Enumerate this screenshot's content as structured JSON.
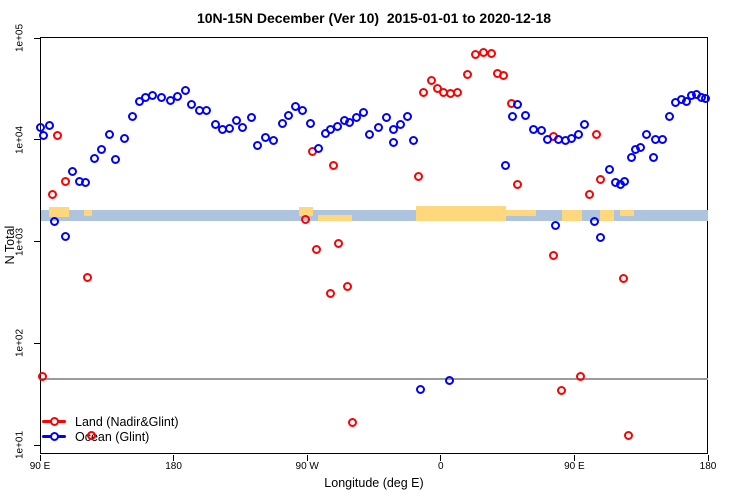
{
  "legend": {
    "items": [
      {
        "label": "Land (Nadir&Glint)",
        "color": "#ff0000"
      },
      {
        "label": "Ocean (Glint)",
        "color": "#0000ff"
      }
    ]
  },
  "chart_data": {
    "type": "scatter",
    "title": "10N-15N December (Ver 10)  2015-01-01 to 2020-12-18",
    "xlabel": "Longitude (deg E)",
    "ylabel": "N Total",
    "x_axis": {
      "note": "longitude axis runs eastward and wraps: 90E -> 180 -> 90W -> 0 -> 90E -> 180; internal coordinate 90..540 deg",
      "range": [
        90,
        540
      ],
      "ticks": [
        {
          "pos": 90,
          "label": "90 E"
        },
        {
          "pos": 180,
          "label": "180"
        },
        {
          "pos": 270,
          "label": "90 W"
        },
        {
          "pos": 360,
          "label": "0"
        },
        {
          "pos": 450,
          "label": "90 E"
        },
        {
          "pos": 540,
          "label": "180"
        }
      ]
    },
    "y_axis": {
      "scale": "log",
      "range": [
        10,
        100000
      ],
      "ticks": [
        {
          "value": 10,
          "label": "1e+01"
        },
        {
          "value": 100,
          "label": "1e+02"
        },
        {
          "value": 1000,
          "label": "1e+03"
        },
        {
          "value": 10000,
          "label": "1e+04"
        },
        {
          "value": 100000,
          "label": "1e+05"
        }
      ]
    },
    "reference_line": {
      "value": 45,
      "color": "#9b9b9b"
    },
    "map_strip": {
      "ocean_color": "#aec3de",
      "land_color": "#ffd87e",
      "n_top": 2000,
      "n_bottom": 1580,
      "land_segments": [
        {
          "lon_start": 96,
          "lon_end": 109.5,
          "style": "tall-top"
        },
        {
          "lon_start": 119.5,
          "lon_end": 125,
          "style": "top-half"
        },
        {
          "lon_start": 264.5,
          "lon_end": 274,
          "style": "top-bulge"
        },
        {
          "lon_start": 277,
          "lon_end": 300,
          "style": "bottom-half"
        },
        {
          "lon_start": 343,
          "lon_end": 404,
          "style": "full-bulge"
        },
        {
          "lon_start": 404,
          "lon_end": 424,
          "style": "top-half"
        },
        {
          "lon_start": 441.5,
          "lon_end": 455,
          "style": "full"
        },
        {
          "lon_start": 467,
          "lon_end": 476.5,
          "style": "full"
        },
        {
          "lon_start": 480.5,
          "lon_end": 490,
          "style": "top-half"
        }
      ]
    },
    "series": [
      {
        "name": "Land (Nadir&Glint)",
        "color": "#ff0000",
        "points": [
          [
            101.9,
            11100
          ],
          [
            107.0,
            3950
          ],
          [
            98.3,
            2940
          ],
          [
            122.1,
            443
          ],
          [
            91.8,
            47.7
          ],
          [
            125.0,
            12.3
          ],
          [
            269.0,
            1640
          ],
          [
            273.4,
            7670
          ],
          [
            276.4,
            841
          ],
          [
            285.8,
            306
          ],
          [
            288.0,
            5550
          ],
          [
            291.4,
            964
          ],
          [
            297.4,
            366
          ],
          [
            300.5,
            16.6
          ],
          [
            344.9,
            4330
          ],
          [
            348.6,
            29600
          ],
          [
            353.8,
            38900
          ],
          [
            357.6,
            31900
          ],
          [
            362.1,
            29600
          ],
          [
            366.6,
            28500
          ],
          [
            371.1,
            29200
          ],
          [
            377.8,
            43700
          ],
          [
            383.7,
            68700
          ],
          [
            389.1,
            71900
          ],
          [
            394.3,
            70600
          ],
          [
            398.0,
            45600
          ],
          [
            402.5,
            42900
          ],
          [
            407.7,
            23000
          ],
          [
            411.9,
            3610
          ],
          [
            436.0,
            10800
          ],
          [
            436.0,
            723
          ],
          [
            441.6,
            34.2
          ],
          [
            454.2,
            47.7
          ],
          [
            460.0,
            2940
          ],
          [
            465.2,
            11200
          ],
          [
            467.8,
            4130
          ],
          [
            483.3,
            436
          ],
          [
            486.2,
            12.3
          ]
        ]
      },
      {
        "name": "Ocean (Glint)",
        "color": "#0000ff",
        "points": [
          [
            90.0,
            13300
          ],
          [
            92.3,
            11100
          ],
          [
            96.1,
            13900
          ],
          [
            100.1,
            1580
          ],
          [
            107.5,
            1120
          ],
          [
            111.8,
            4900
          ],
          [
            116.3,
            3950
          ],
          [
            120.5,
            3800
          ],
          [
            126.6,
            6650
          ],
          [
            131.6,
            7980
          ],
          [
            137.1,
            11200
          ],
          [
            140.9,
            6430
          ],
          [
            146.8,
            10400
          ],
          [
            152.4,
            17200
          ],
          [
            156.9,
            23800
          ],
          [
            161.4,
            26300
          ],
          [
            166.1,
            27100
          ],
          [
            172.0,
            26300
          ],
          [
            177.6,
            24700
          ],
          [
            182.5,
            26700
          ],
          [
            187.7,
            30500
          ],
          [
            192.2,
            22100
          ],
          [
            197.3,
            19700
          ],
          [
            202.3,
            19400
          ],
          [
            207.9,
            14300
          ],
          [
            213.1,
            12700
          ],
          [
            217.5,
            13000
          ],
          [
            222.5,
            15700
          ],
          [
            226.5,
            13200
          ],
          [
            232.6,
            16700
          ],
          [
            236.4,
            8730
          ],
          [
            241.6,
            10500
          ],
          [
            247.1,
            9840
          ],
          [
            253.2,
            14400
          ],
          [
            257.7,
            17600
          ],
          [
            262.2,
            21300
          ],
          [
            266.7,
            19400
          ],
          [
            271.9,
            14600
          ],
          [
            277.9,
            8300
          ],
          [
            282.4,
            11600
          ],
          [
            285.8,
            12700
          ],
          [
            290.7,
            13700
          ],
          [
            294.8,
            15500
          ],
          [
            298.8,
            14900
          ],
          [
            303.3,
            16700
          ],
          [
            307.8,
            18600
          ],
          [
            312.3,
            11200
          ],
          [
            318.0,
            13300
          ],
          [
            323.3,
            16700
          ],
          [
            327.8,
            9410
          ],
          [
            328.4,
            12700
          ],
          [
            332.9,
            14100
          ],
          [
            337.4,
            17200
          ],
          [
            341.6,
            9890
          ],
          [
            346.6,
            35.3
          ],
          [
            365.7,
            42.9
          ],
          [
            403.5,
            5640
          ],
          [
            408.6,
            17200
          ],
          [
            411.9,
            22100
          ],
          [
            417.3,
            17400
          ],
          [
            422.7,
            12700
          ],
          [
            427.6,
            12300
          ],
          [
            432.1,
            10200
          ],
          [
            437.5,
            1450
          ],
          [
            439.3,
            10000
          ],
          [
            444.2,
            9840
          ],
          [
            448.3,
            10400
          ],
          [
            452.8,
            11200
          ],
          [
            456.8,
            14100
          ],
          [
            463.4,
            1580
          ],
          [
            467.6,
            1110
          ],
          [
            473.9,
            5070
          ],
          [
            477.9,
            3800
          ],
          [
            481.1,
            3690
          ],
          [
            484.0,
            3890
          ],
          [
            488.5,
            6760
          ],
          [
            491.4,
            7980
          ],
          [
            494.6,
            8470
          ],
          [
            498.6,
            11200
          ],
          [
            503.5,
            6760
          ],
          [
            504.9,
            10000
          ],
          [
            509.4,
            10200
          ],
          [
            513.8,
            17200
          ],
          [
            518.3,
            23300
          ],
          [
            522.2,
            25100
          ],
          [
            525.5,
            23800
          ],
          [
            528.9,
            27100
          ],
          [
            532.3,
            28300
          ],
          [
            535.6,
            26300
          ],
          [
            538.5,
            25700
          ]
        ]
      }
    ]
  }
}
